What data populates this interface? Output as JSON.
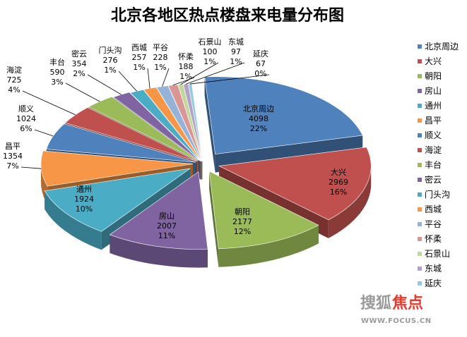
{
  "chart_data": {
    "type": "pie",
    "title": "北京各地区热点楼盘来电量分布图",
    "legend_position": "right",
    "slices": [
      {
        "name": "北京周边",
        "value": 4098,
        "percent": "22%",
        "color": "#4F81BD"
      },
      {
        "name": "大兴",
        "value": 2969,
        "percent": "16%",
        "color": "#C0504D"
      },
      {
        "name": "朝阳",
        "value": 2177,
        "percent": "12%",
        "color": "#9BBB59"
      },
      {
        "name": "房山",
        "value": 2007,
        "percent": "11%",
        "color": "#8064A2"
      },
      {
        "name": "通州",
        "value": 1924,
        "percent": "10%",
        "color": "#4BACC6"
      },
      {
        "name": "昌平",
        "value": 1354,
        "percent": "7%",
        "color": "#F79646"
      },
      {
        "name": "顺义",
        "value": 1024,
        "percent": "6%",
        "color": "#4F81BD"
      },
      {
        "name": "海淀",
        "value": 725,
        "percent": "4%",
        "color": "#C0504D"
      },
      {
        "name": "丰台",
        "value": 590,
        "percent": "3%",
        "color": "#9BBB59"
      },
      {
        "name": "密云",
        "value": 354,
        "percent": "2%",
        "color": "#8064A2"
      },
      {
        "name": "门头沟",
        "value": 276,
        "percent": "1%",
        "color": "#4BACC6"
      },
      {
        "name": "西城",
        "value": 257,
        "percent": "1%",
        "color": "#F79646"
      },
      {
        "name": "平谷",
        "value": 228,
        "percent": "1%",
        "color": "#95B3D7"
      },
      {
        "name": "怀柔",
        "value": 188,
        "percent": "1%",
        "color": "#D99694"
      },
      {
        "name": "石景山",
        "value": 100,
        "percent": "1%",
        "color": "#C3D69B"
      },
      {
        "name": "东城",
        "value": 97,
        "percent": "1%",
        "color": "#B2A2C7"
      },
      {
        "name": "延庆",
        "value": 67,
        "percent": "0%",
        "color": "#93CDDD"
      }
    ]
  },
  "watermark": {
    "brand": "搜狐",
    "brand_accent": "焦点",
    "url": "WWW.FOCUS.CN",
    "accent_color": "#E63B2E"
  }
}
